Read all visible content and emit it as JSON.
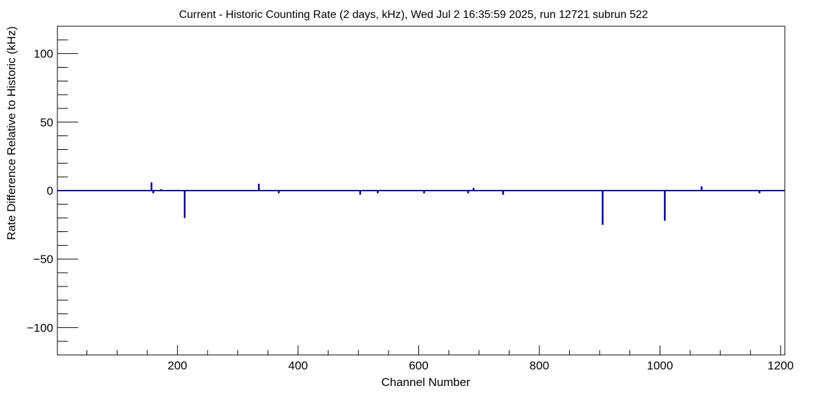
{
  "chart_data": {
    "type": "line",
    "title": "Current - Historic Counting Rate (2 days, kHz), Wed Jul  2 16:35:59 2025, run 12721 subrun 522",
    "xlabel": "Channel Number",
    "ylabel": "Rate Difference Relative to Historic (kHz)",
    "xlim": [
      1,
      1207
    ],
    "ylim": [
      -120,
      120
    ],
    "x_ticks": [
      200,
      400,
      600,
      800,
      1000,
      1200
    ],
    "y_ticks": [
      -100,
      -50,
      0,
      50,
      100
    ],
    "x_tick_labels": [
      "200",
      "400",
      "600",
      "800",
      "1000",
      "1200"
    ],
    "y_tick_labels": [
      "−100",
      "−50",
      "0",
      "50",
      "100"
    ],
    "grid": false,
    "legend": "none",
    "series": [
      {
        "color": "#000099",
        "baseline": 0,
        "spikes": [
          {
            "x": 157,
            "y": 6
          },
          {
            "x": 160,
            "y": -2
          },
          {
            "x": 173,
            "y": 1
          },
          {
            "x": 212,
            "y": -20
          },
          {
            "x": 335,
            "y": 5
          },
          {
            "x": 368,
            "y": -2
          },
          {
            "x": 503,
            "y": -3
          },
          {
            "x": 532,
            "y": -2
          },
          {
            "x": 609,
            "y": -2
          },
          {
            "x": 682,
            "y": -2
          },
          {
            "x": 691,
            "y": 2
          },
          {
            "x": 740,
            "y": -3
          },
          {
            "x": 905,
            "y": -25
          },
          {
            "x": 1008,
            "y": -22
          },
          {
            "x": 1069,
            "y": 3
          },
          {
            "x": 1165,
            "y": -2
          }
        ]
      }
    ]
  }
}
